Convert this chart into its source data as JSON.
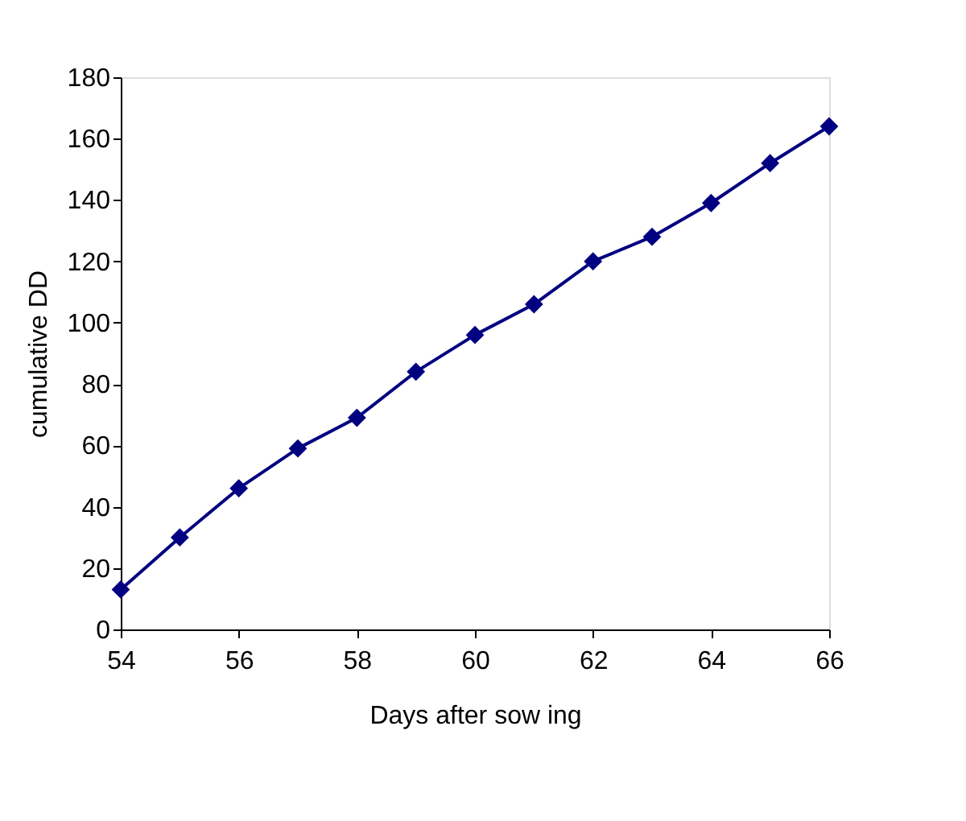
{
  "chart_data": {
    "type": "line",
    "xlabel": "Days after sow ing",
    "ylabel": "cumulative DD",
    "x": [
      54,
      55,
      56,
      57,
      58,
      59,
      60,
      61,
      62,
      63,
      64,
      65,
      66
    ],
    "series": [
      {
        "color": "#000080",
        "values": [
          13,
          30,
          46,
          59,
          69,
          84,
          96,
          106,
          120,
          128,
          139,
          152,
          164
        ]
      }
    ],
    "xlim": [
      54,
      66
    ],
    "xticks": [
      54,
      56,
      58,
      60,
      62,
      64,
      66
    ],
    "ylim": [
      0,
      180
    ],
    "yticks": [
      0,
      20,
      40,
      60,
      80,
      100,
      120,
      140,
      160,
      180
    ],
    "marker": "diamond",
    "line_style": "solid",
    "grid": false
  }
}
